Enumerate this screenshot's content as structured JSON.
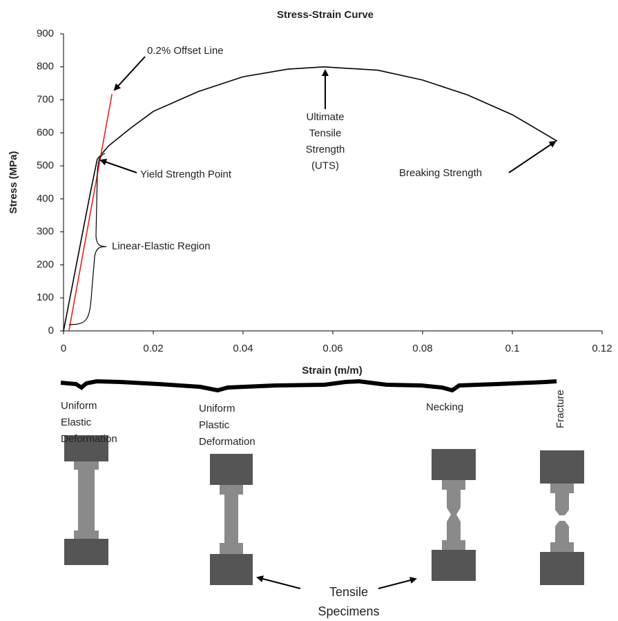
{
  "chart_data": {
    "type": "line",
    "title": "Stress-Strain Curve",
    "x_label": "Strain (m/m)",
    "y_label": "Stress (MPa)",
    "xlim": [
      0,
      0.12
    ],
    "xticks": [
      0,
      0.02,
      0.04,
      0.06,
      0.08,
      0.1,
      0.12
    ],
    "ylim": [
      0,
      900
    ],
    "yticks": [
      0,
      100,
      200,
      300,
      400,
      500,
      600,
      700,
      800,
      900
    ],
    "series": [
      {
        "color": "#000000",
        "x": [
          0,
          0.002,
          0.004,
          0.006,
          0.0075,
          0.01,
          0.015,
          0.02,
          0.03,
          0.04,
          0.05,
          0.058,
          0.07,
          0.08,
          0.09,
          0.1,
          0.11
        ],
        "values": [
          0,
          140,
          280,
          420,
          520,
          560,
          615,
          665,
          725,
          770,
          793,
          800,
          790,
          760,
          715,
          655,
          575
        ]
      },
      {
        "color": "#e8201a",
        "x": [
          0.0012,
          0.0108
        ],
        "values": [
          0,
          718
        ]
      }
    ],
    "annotations": [
      {
        "lines": [
          "0.2% Offset Line"
        ]
      },
      {
        "lines": [
          "Yield Strength Point"
        ]
      },
      {
        "lines": [
          "Linear-Elastic Region"
        ]
      },
      {
        "lines": [
          "Ultimate",
          "Tensile",
          "Strength",
          "(UTS)"
        ]
      },
      {
        "lines": [
          "Breaking Strength"
        ]
      }
    ]
  },
  "specimens": {
    "labels": [
      [
        "Uniform",
        "Elastic",
        "Deformation"
      ],
      [
        "Uniform",
        "Plastic",
        "Deformation"
      ],
      [
        "Necking"
      ],
      [
        "Fracture"
      ]
    ],
    "caption": [
      "Tensile",
      "Specimens"
    ]
  }
}
